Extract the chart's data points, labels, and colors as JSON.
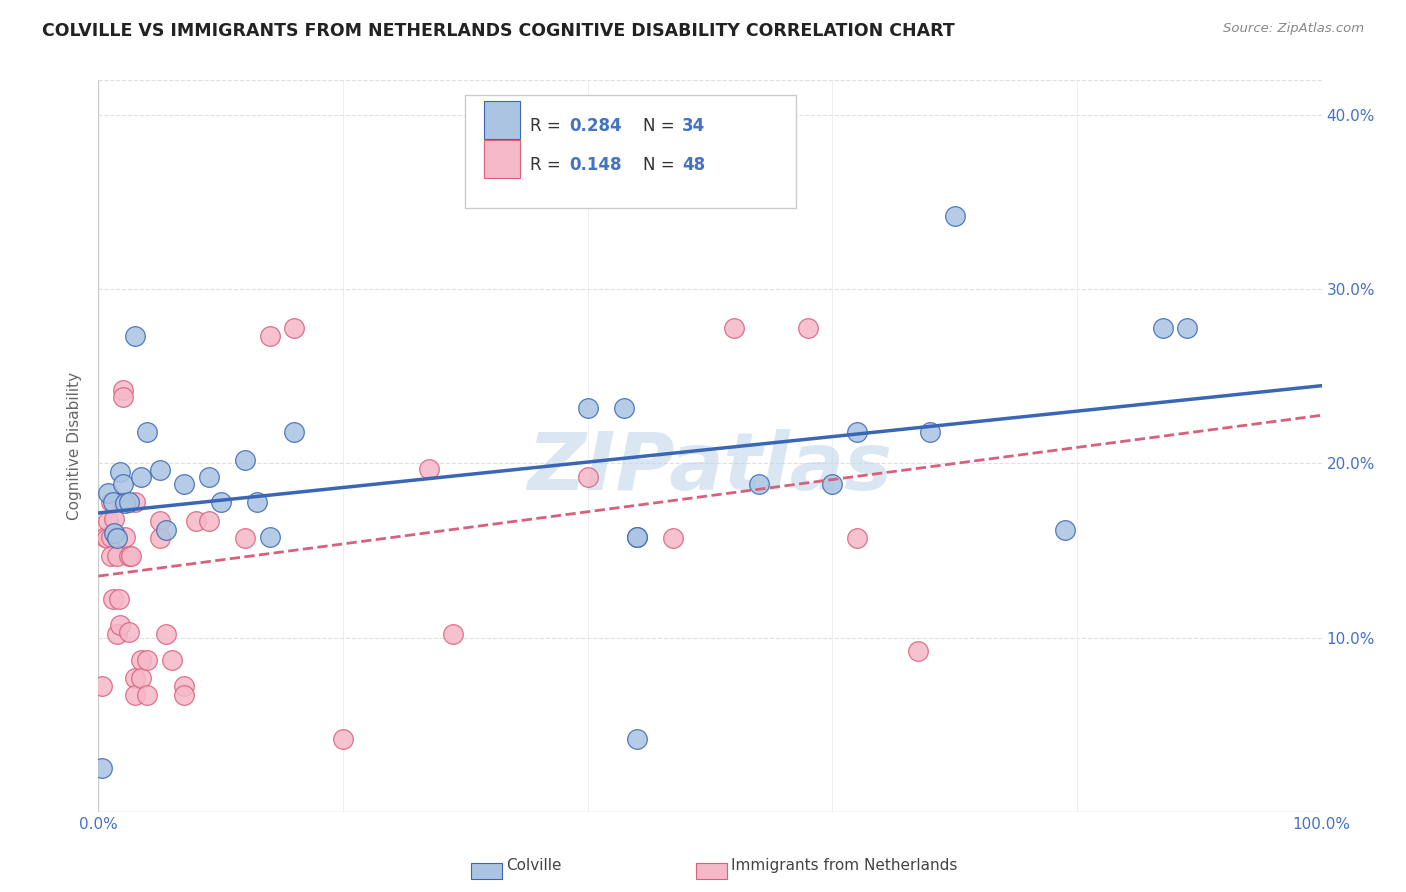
{
  "title": "COLVILLE VS IMMIGRANTS FROM NETHERLANDS COGNITIVE DISABILITY CORRELATION CHART",
  "source": "Source: ZipAtlas.com",
  "ylabel": "Cognitive Disability",
  "xlim": [
    0,
    1.0
  ],
  "ylim": [
    0,
    0.42
  ],
  "xticks": [
    0.0,
    0.1,
    0.2,
    0.3,
    0.4,
    0.5,
    0.6,
    0.7,
    0.8,
    0.9,
    1.0
  ],
  "yticks": [
    0.0,
    0.1,
    0.2,
    0.3,
    0.4
  ],
  "ytick_right_labels": [
    "",
    "10.0%",
    "20.0%",
    "30.0%",
    "40.0%"
  ],
  "xtick_labels": [
    "0.0%",
    "",
    "",
    "",
    "",
    "",
    "",
    "",
    "",
    "",
    "100.0%"
  ],
  "colville_color": "#aac4e2",
  "netherlands_color": "#f5b8c8",
  "line_colville_color": "#3a67b5",
  "line_netherlands_color": "#d9607a",
  "colville_x": [
    0.003,
    0.008,
    0.012,
    0.013,
    0.015,
    0.018,
    0.02,
    0.022,
    0.025,
    0.03,
    0.035,
    0.04,
    0.05,
    0.055,
    0.07,
    0.09,
    0.1,
    0.12,
    0.13,
    0.14,
    0.16,
    0.4,
    0.43,
    0.44,
    0.44,
    0.54,
    0.6,
    0.62,
    0.68,
    0.7,
    0.79,
    0.87,
    0.89,
    0.44
  ],
  "colville_y": [
    0.025,
    0.183,
    0.178,
    0.16,
    0.157,
    0.195,
    0.188,
    0.177,
    0.178,
    0.273,
    0.192,
    0.218,
    0.196,
    0.162,
    0.188,
    0.192,
    0.178,
    0.202,
    0.178,
    0.158,
    0.218,
    0.232,
    0.232,
    0.158,
    0.042,
    0.188,
    0.188,
    0.218,
    0.218,
    0.342,
    0.162,
    0.278,
    0.278,
    0.158
  ],
  "netherlands_x": [
    0.003,
    0.005,
    0.007,
    0.008,
    0.01,
    0.01,
    0.01,
    0.012,
    0.013,
    0.015,
    0.015,
    0.015,
    0.017,
    0.018,
    0.02,
    0.02,
    0.02,
    0.022,
    0.025,
    0.025,
    0.027,
    0.03,
    0.03,
    0.03,
    0.035,
    0.035,
    0.04,
    0.04,
    0.05,
    0.05,
    0.055,
    0.06,
    0.07,
    0.07,
    0.08,
    0.09,
    0.12,
    0.14,
    0.16,
    0.27,
    0.29,
    0.4,
    0.47,
    0.52,
    0.58,
    0.62,
    0.67,
    0.2
  ],
  "netherlands_y": [
    0.072,
    0.158,
    0.157,
    0.167,
    0.158,
    0.147,
    0.178,
    0.122,
    0.168,
    0.158,
    0.147,
    0.102,
    0.122,
    0.107,
    0.242,
    0.238,
    0.178,
    0.158,
    0.147,
    0.103,
    0.147,
    0.178,
    0.077,
    0.067,
    0.087,
    0.077,
    0.087,
    0.067,
    0.167,
    0.157,
    0.102,
    0.087,
    0.072,
    0.067,
    0.167,
    0.167,
    0.157,
    0.273,
    0.278,
    0.197,
    0.102,
    0.192,
    0.157,
    0.278,
    0.278,
    0.157,
    0.092,
    0.042
  ],
  "watermark": "ZIPatlas",
  "background_color": "#ffffff",
  "grid_color": "#d8d8d8",
  "legend_r1": "0.284",
  "legend_n1": "34",
  "legend_r2": "0.148",
  "legend_n2": "48",
  "colville_label": "Colville",
  "netherlands_label": "Immigrants from Netherlands"
}
